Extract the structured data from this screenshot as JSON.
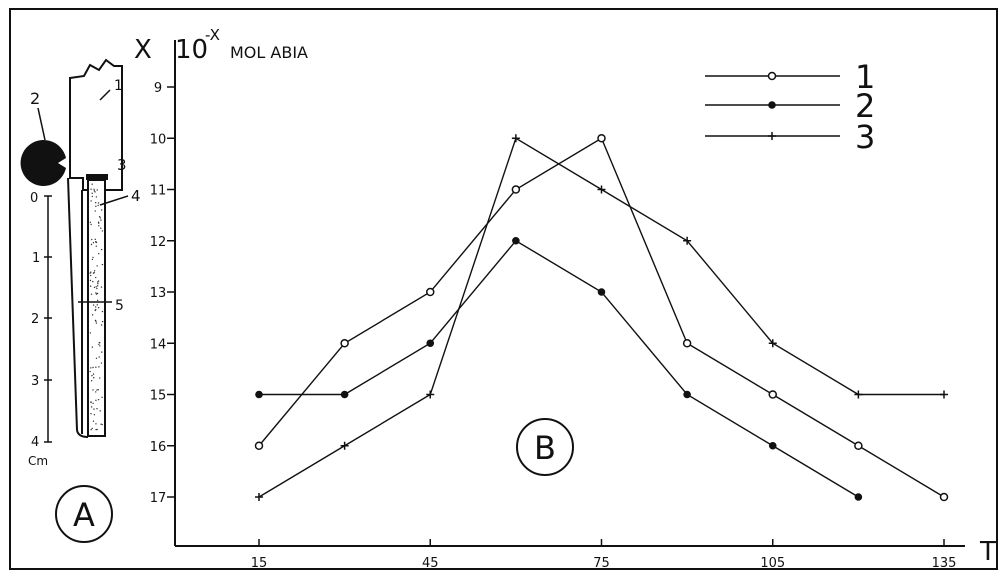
{
  "panel_a": {
    "callouts": [
      "1",
      "2",
      "3",
      "4",
      "5"
    ],
    "scale_ticks": [
      "0",
      "1",
      "2",
      "3",
      "4"
    ],
    "scale_unit": "Cm",
    "circle_label": "A"
  },
  "chart_data": {
    "type": "line",
    "ylabel": "X",
    "ylabel_suffix": "10",
    "ylabel_exp": "-X",
    "ylabel_unit": "MOL ABIA",
    "xlabel": "T",
    "panel_label": "B",
    "grid": false,
    "legend_position": "top-right",
    "y_inverted": true,
    "ylim": [
      8.6,
      17.8
    ],
    "xlim": [
      0,
      150
    ],
    "x_ticks": [
      15,
      45,
      75,
      105,
      135
    ],
    "y_ticks": [
      9,
      10,
      11,
      12,
      13,
      14,
      15,
      16,
      17
    ],
    "x": [
      15,
      30,
      45,
      60,
      75,
      90,
      105,
      120,
      135
    ],
    "series": [
      {
        "name": "1",
        "marker": "open-circle",
        "values": [
          16,
          14,
          13,
          11,
          10,
          14,
          15,
          16,
          17
        ]
      },
      {
        "name": "2",
        "marker": "filled-circle",
        "values": [
          15,
          15,
          14,
          12,
          13,
          15,
          16,
          17,
          null
        ]
      },
      {
        "name": "3",
        "marker": "plus",
        "values": [
          17,
          16,
          15,
          10,
          11,
          12,
          14,
          15,
          15
        ]
      }
    ]
  }
}
